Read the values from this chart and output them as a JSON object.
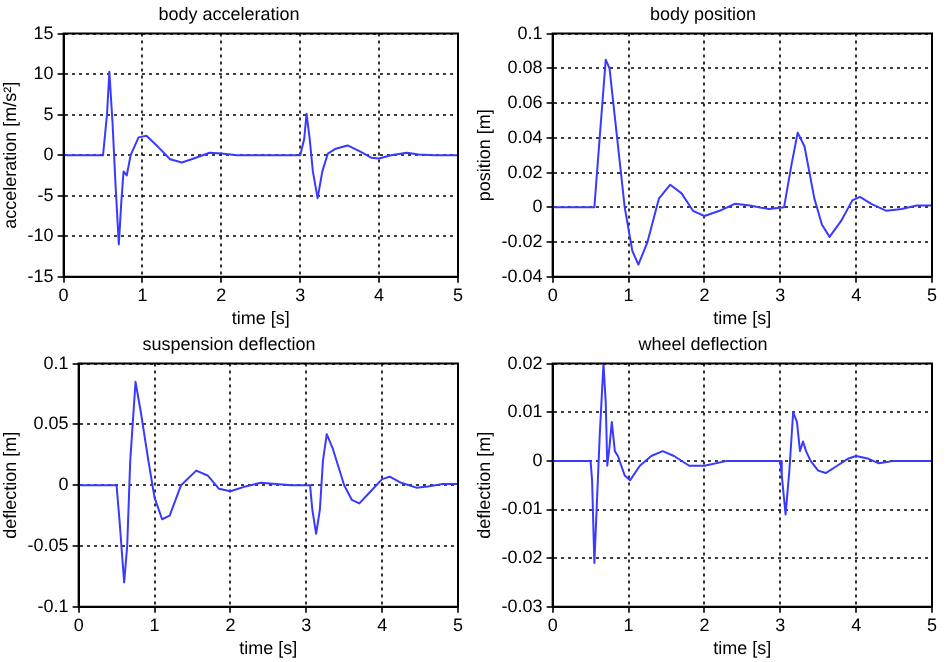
{
  "chart_data": [
    {
      "type": "line",
      "title": "body acceleration",
      "xlabel": "time [s]",
      "ylabel": "acceleration [m/s²]",
      "xlim": [
        0,
        5
      ],
      "xticks": [
        0,
        1,
        2,
        3,
        4,
        5
      ],
      "ylim": [
        -15,
        15
      ],
      "yticks": [
        -15,
        -10,
        -5,
        0,
        5,
        10,
        15
      ],
      "grid": true,
      "legend": false,
      "marker": "none",
      "line_style": "solid",
      "series": [
        {
          "color": "#3a3aff",
          "x": [
            0,
            0.5,
            0.55,
            0.58,
            0.62,
            0.66,
            0.7,
            0.73,
            0.76,
            0.8,
            0.85,
            0.95,
            1.05,
            1.2,
            1.35,
            1.5,
            1.65,
            1.85,
            2.0,
            2.2,
            3.0,
            3.05,
            3.08,
            3.12,
            3.16,
            3.22,
            3.28,
            3.35,
            3.45,
            3.6,
            3.75,
            3.9,
            4.0,
            4.15,
            4.35,
            4.5,
            4.7,
            5
          ],
          "values": [
            0,
            0,
            5,
            10.3,
            4,
            -4,
            -11,
            -6,
            -2,
            -2.5,
            0,
            2.2,
            2.4,
            1,
            -0.5,
            -0.9,
            -0.4,
            0.3,
            0.2,
            0,
            0,
            2,
            5.1,
            2,
            -2,
            -5.3,
            -2,
            0.2,
            0.8,
            1.2,
            0.5,
            -0.3,
            -0.4,
            0,
            0.3,
            0.1,
            0,
            0
          ]
        }
      ]
    },
    {
      "type": "line",
      "title": "body position",
      "xlabel": "time [s]",
      "ylabel": "position [m]",
      "xlim": [
        0,
        5
      ],
      "xticks": [
        0,
        1,
        2,
        3,
        4,
        5
      ],
      "ylim": [
        -0.04,
        0.1
      ],
      "yticks": [
        -0.04,
        -0.02,
        0,
        0.02,
        0.04,
        0.06,
        0.08,
        0.1
      ],
      "grid": true,
      "legend": false,
      "marker": "none",
      "line_style": "solid",
      "series": [
        {
          "color": "#3a3aff",
          "x": [
            0,
            0.55,
            0.62,
            0.7,
            0.75,
            0.85,
            0.95,
            1.05,
            1.13,
            1.25,
            1.4,
            1.55,
            1.7,
            1.85,
            2.0,
            2.2,
            2.4,
            2.6,
            2.85,
            3.05,
            3.15,
            3.23,
            3.32,
            3.45,
            3.55,
            3.65,
            3.8,
            3.95,
            4.05,
            4.2,
            4.4,
            4.6,
            4.8,
            5
          ],
          "values": [
            0,
            0,
            0.04,
            0.085,
            0.08,
            0.04,
            0,
            -0.025,
            -0.033,
            -0.02,
            0.005,
            0.013,
            0.008,
            -0.002,
            -0.005,
            -0.002,
            0.002,
            0.001,
            -0.001,
            0,
            0.025,
            0.043,
            0.035,
            0.005,
            -0.01,
            -0.017,
            -0.008,
            0.004,
            0.006,
            0.002,
            -0.002,
            -0.001,
            0.001,
            0.001
          ]
        }
      ]
    },
    {
      "type": "line",
      "title": "suspension deflection",
      "xlabel": "time [s]",
      "ylabel": "deflection [m]",
      "xlim": [
        0,
        5
      ],
      "xticks": [
        0,
        1,
        2,
        3,
        4,
        5
      ],
      "ylim": [
        -0.1,
        0.1
      ],
      "yticks": [
        -0.1,
        -0.05,
        0,
        0.05,
        0.1
      ],
      "grid": true,
      "legend": false,
      "marker": "none",
      "line_style": "solid",
      "series": [
        {
          "color": "#3a3aff",
          "x": [
            0,
            0.5,
            0.54,
            0.6,
            0.64,
            0.68,
            0.75,
            0.82,
            0.92,
            1.0,
            1.1,
            1.2,
            1.35,
            1.55,
            1.7,
            1.85,
            2.0,
            2.2,
            2.4,
            2.6,
            2.8,
            3.05,
            3.08,
            3.13,
            3.18,
            3.22,
            3.27,
            3.35,
            3.5,
            3.6,
            3.7,
            3.85,
            4.0,
            4.1,
            4.25,
            4.45,
            4.6,
            4.8,
            5
          ],
          "values": [
            0,
            0,
            -0.03,
            -0.08,
            -0.05,
            0.02,
            0.085,
            0.06,
            0.02,
            -0.01,
            -0.028,
            -0.025,
            0,
            0.012,
            0.008,
            -0.003,
            -0.005,
            -0.001,
            0.002,
            0.001,
            0,
            0,
            -0.02,
            -0.04,
            -0.02,
            0.02,
            0.042,
            0.03,
            0,
            -0.012,
            -0.015,
            -0.005,
            0.005,
            0.007,
            0.002,
            -0.002,
            -0.001,
            0.001,
            0.001
          ]
        }
      ]
    },
    {
      "type": "line",
      "title": "wheel deflection",
      "xlabel": "time [s]",
      "ylabel": "deflection [m]",
      "xlim": [
        0,
        5
      ],
      "xticks": [
        0,
        1,
        2,
        3,
        4,
        5
      ],
      "ylim": [
        -0.03,
        0.02
      ],
      "yticks": [
        -0.03,
        -0.02,
        -0.01,
        0,
        0.01,
        0.02
      ],
      "grid": true,
      "legend": false,
      "marker": "none",
      "line_style": "solid",
      "series": [
        {
          "color": "#3a3aff",
          "x": [
            0,
            0.5,
            0.52,
            0.55,
            0.58,
            0.62,
            0.67,
            0.7,
            0.72,
            0.75,
            0.78,
            0.82,
            0.86,
            0.95,
            1.02,
            1.15,
            1.3,
            1.45,
            1.6,
            1.8,
            2.0,
            2.3,
            3.0,
            3.02,
            3.07,
            3.12,
            3.17,
            3.22,
            3.26,
            3.3,
            3.34,
            3.4,
            3.5,
            3.6,
            3.75,
            3.9,
            4.0,
            4.15,
            4.3,
            4.5,
            5
          ],
          "values": [
            0,
            0,
            -0.004,
            -0.021,
            -0.01,
            0.005,
            0.02,
            0.012,
            -0.001,
            0.003,
            0.008,
            0.002,
            0.001,
            -0.003,
            -0.004,
            -0.001,
            0.001,
            0.002,
            0.001,
            -0.001,
            -0.001,
            0,
            0,
            -0.003,
            -0.011,
            -0.002,
            0.01,
            0.008,
            0.002,
            0.004,
            0.002,
            0,
            -0.002,
            -0.0025,
            -0.001,
            0.0005,
            0.001,
            0.0005,
            -0.0005,
            0,
            0
          ]
        }
      ]
    }
  ]
}
